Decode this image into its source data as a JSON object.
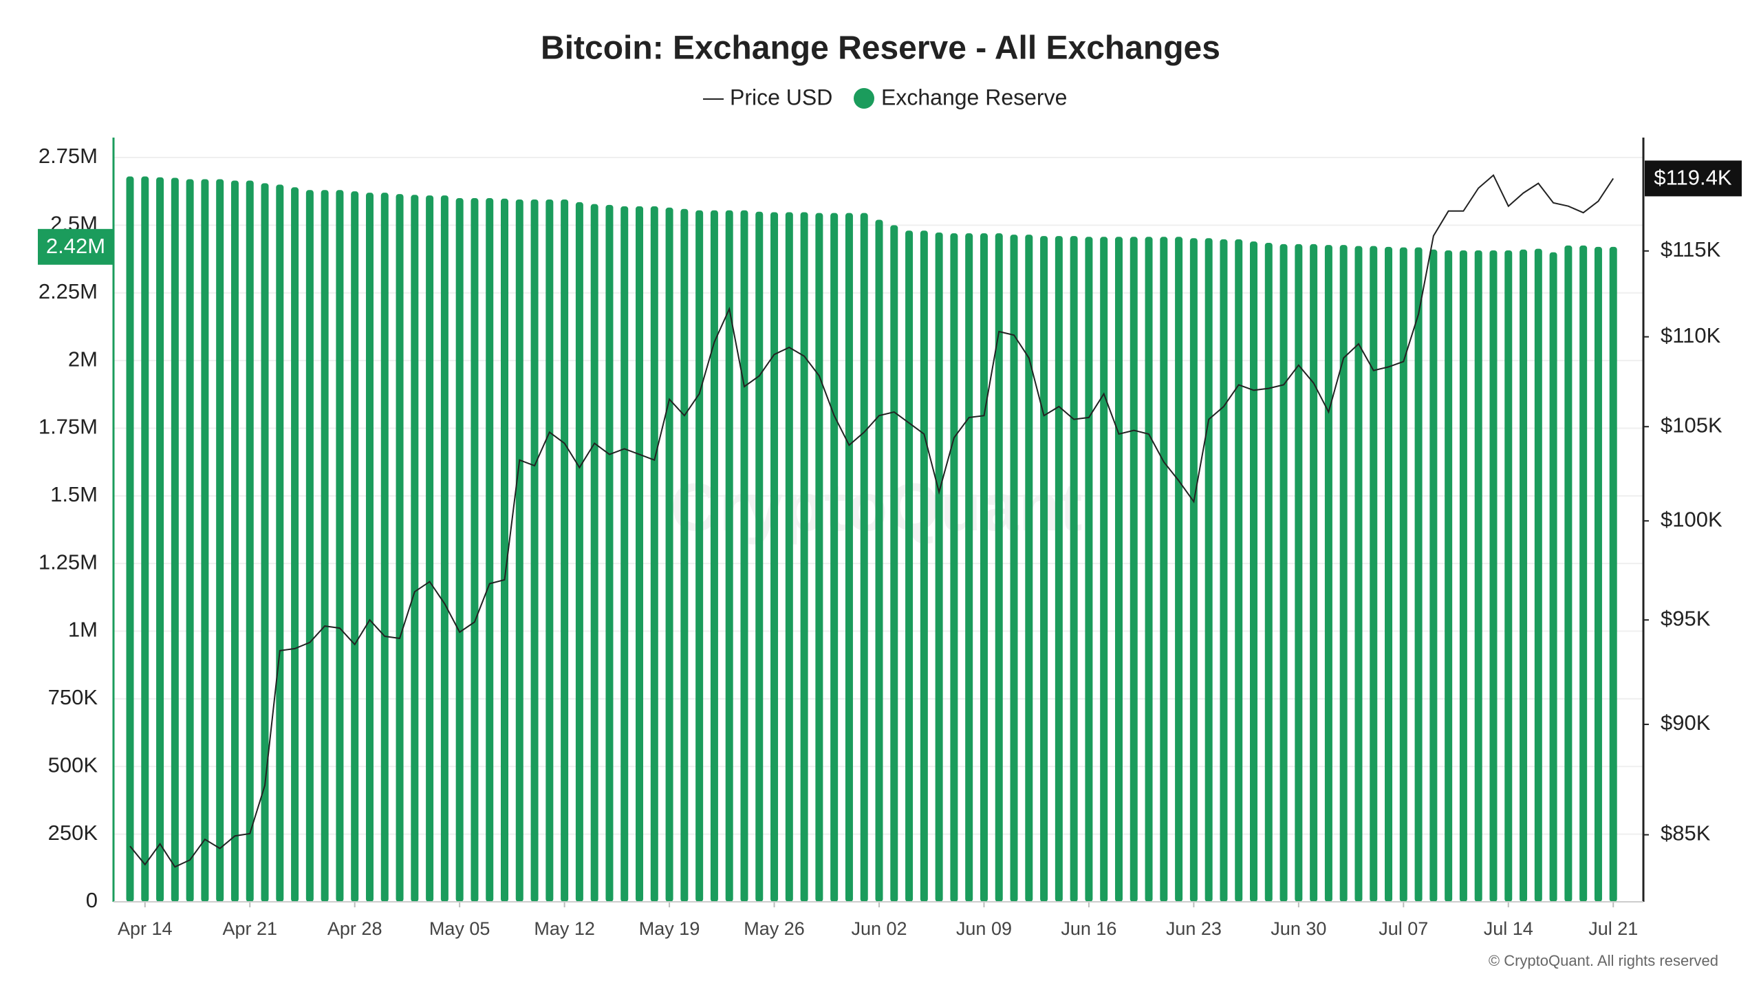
{
  "chart_data": {
    "type": "combo",
    "title": "Bitcoin: Exchange Reserve - All Exchanges",
    "watermark": "CryptoQuant",
    "copyright": "© CryptoQuant. All rights reserved",
    "categories": [
      null,
      "Apr 14",
      null,
      null,
      null,
      null,
      null,
      null,
      "Apr 21",
      null,
      null,
      null,
      null,
      null,
      null,
      "Apr 28",
      null,
      null,
      null,
      null,
      null,
      null,
      "May 05",
      null,
      null,
      null,
      null,
      null,
      null,
      "May 12",
      null,
      null,
      null,
      null,
      null,
      null,
      "May 19",
      null,
      null,
      null,
      null,
      null,
      null,
      "May 26",
      null,
      null,
      null,
      null,
      null,
      null,
      "Jun 02",
      null,
      null,
      null,
      null,
      null,
      null,
      "Jun 09",
      null,
      null,
      null,
      null,
      null,
      null,
      "Jun 16",
      null,
      null,
      null,
      null,
      null,
      null,
      "Jun 23",
      null,
      null,
      null,
      null,
      null,
      null,
      "Jun 30",
      null,
      null,
      null,
      null,
      null,
      null,
      "Jul 07",
      null,
      null,
      null,
      null,
      null,
      null,
      "Jul 14",
      null,
      null,
      null,
      null,
      null,
      null,
      "Jul 21"
    ],
    "series": [
      {
        "name": "Price USD",
        "type": "line",
        "axis": "y2",
        "color": "#222222",
        "last_value_label": "$119.4K",
        "values": [
          84500,
          83700,
          84600,
          83600,
          83900,
          84800,
          84400,
          84950,
          85050,
          87200,
          93500,
          93600,
          93900,
          94700,
          94600,
          93800,
          95000,
          94200,
          94100,
          96400,
          96900,
          95800,
          94400,
          94900,
          96800,
          97000,
          103200,
          102900,
          104700,
          104100,
          102800,
          104100,
          103500,
          103800,
          103500,
          103200,
          106500,
          105600,
          106800,
          109700,
          111600,
          107200,
          107800,
          109000,
          109400,
          108900,
          107800,
          105600,
          104000,
          104700,
          105600,
          105800,
          105200,
          104600,
          101500,
          104400,
          105500,
          105600,
          110300,
          110100,
          108800,
          105600,
          106100,
          105400,
          105500,
          106800,
          104600,
          104800,
          104600,
          103100,
          102100,
          101000,
          105400,
          106100,
          107300,
          107000,
          107100,
          107300,
          108400,
          107400,
          105800,
          108800,
          109600,
          108100,
          108300,
          108600,
          111300,
          115900,
          117400,
          117400,
          118800,
          119600,
          117700,
          118500,
          119100,
          117900,
          117700,
          117300,
          118000,
          119400
        ]
      },
      {
        "name": "Exchange Reserve",
        "type": "bar",
        "axis": "y",
        "color": "#1b9c5c",
        "last_value_label": "2.42M",
        "values": [
          2680000,
          2680000,
          2677000,
          2675000,
          2670000,
          2670000,
          2670000,
          2665000,
          2665000,
          2655000,
          2650000,
          2640000,
          2630000,
          2630000,
          2630000,
          2625000,
          2620000,
          2620000,
          2615000,
          2612000,
          2610000,
          2610000,
          2600000,
          2600000,
          2600000,
          2598000,
          2595000,
          2595000,
          2595000,
          2595000,
          2585000,
          2578000,
          2575000,
          2570000,
          2570000,
          2570000,
          2565000,
          2560000,
          2555000,
          2555000,
          2555000,
          2555000,
          2550000,
          2548000,
          2548000,
          2548000,
          2545000,
          2545000,
          2545000,
          2545000,
          2520000,
          2500000,
          2480000,
          2480000,
          2473000,
          2470000,
          2470000,
          2470000,
          2470000,
          2465000,
          2465000,
          2460000,
          2460000,
          2460000,
          2457000,
          2457000,
          2457000,
          2457000,
          2457000,
          2457000,
          2457000,
          2452000,
          2452000,
          2448000,
          2448000,
          2440000,
          2435000,
          2430000,
          2430000,
          2430000,
          2427000,
          2427000,
          2423000,
          2423000,
          2420000,
          2418000,
          2418000,
          2410000,
          2407000,
          2407000,
          2407000,
          2407000,
          2407000,
          2410000,
          2413000,
          2400000,
          2425000,
          2425000,
          2420000,
          2420000
        ]
      }
    ],
    "ylim": [
      0,
      2750000
    ],
    "yticks": [
      0,
      {
        "value": 250000,
        "label": "250K"
      },
      {
        "value": 500000,
        "label": "500K"
      },
      {
        "value": 750000,
        "label": "750K"
      },
      {
        "value": 1000000,
        "label": "1M"
      },
      {
        "value": 1250000,
        "label": "1.25M"
      },
      {
        "value": 1500000,
        "label": "1.5M"
      },
      {
        "value": 1750000,
        "label": "1.75M"
      },
      {
        "value": 2000000,
        "label": "2M"
      },
      {
        "value": 2250000,
        "label": "2.25M"
      },
      {
        "value": 2500000,
        "label": "2.5M"
      },
      {
        "value": 2750000,
        "label": "2.75M"
      }
    ],
    "y2lim": [
      82100,
      120700
    ],
    "y2log": true,
    "y2ticks": [
      {
        "value": 85000,
        "label": "$85K"
      },
      {
        "value": 90000,
        "label": "$90K"
      },
      {
        "value": 95000,
        "label": "$95K"
      },
      {
        "value": 100000,
        "label": "$100K"
      },
      {
        "value": 105000,
        "label": "$105K"
      },
      {
        "value": 110000,
        "label": "$110K"
      },
      {
        "value": 115000,
        "label": "$115K"
      }
    ],
    "grid": true
  }
}
